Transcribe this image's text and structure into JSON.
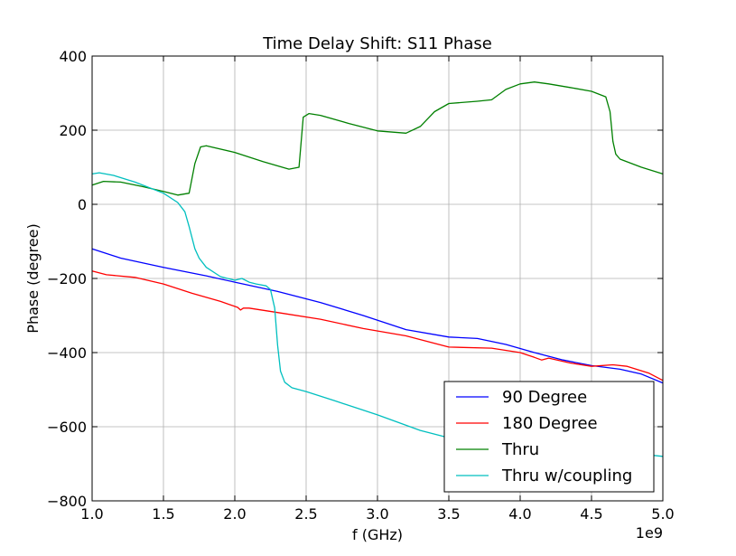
{
  "chart_data": {
    "type": "line",
    "title": "Time Delay Shift: S11 Phase",
    "xlabel": "f (GHz)",
    "ylabel": "Phase (degree)",
    "x_offset_label": "1e9",
    "xlim": [
      1.0,
      5.0
    ],
    "ylim": [
      -800,
      400
    ],
    "x_ticks": [
      1.0,
      1.5,
      2.0,
      2.5,
      3.0,
      3.5,
      4.0,
      4.5,
      5.0
    ],
    "x_tick_labels": [
      "1.0",
      "1.5",
      "2.0",
      "2.5",
      "3.0",
      "3.5",
      "4.0",
      "4.5",
      "5.0"
    ],
    "y_ticks": [
      -800,
      -600,
      -400,
      -200,
      0,
      200,
      400
    ],
    "y_tick_labels": [
      "−800",
      "−600",
      "−400",
      "−200",
      "0",
      "200",
      "400"
    ],
    "grid": true,
    "legend_position": "lower-right",
    "series": [
      {
        "name": "90 Degree",
        "color": "#0000ff",
        "x": [
          1.0,
          1.2,
          1.5,
          1.8,
          2.0,
          2.3,
          2.6,
          2.9,
          3.2,
          3.5,
          3.7,
          3.9,
          4.1,
          4.3,
          4.5,
          4.7,
          4.85,
          5.0
        ],
        "y": [
          -120,
          -145,
          -170,
          -193,
          -210,
          -235,
          -265,
          -300,
          -338,
          -358,
          -362,
          -378,
          -400,
          -420,
          -435,
          -445,
          -458,
          -482
        ]
      },
      {
        "name": "180 Degree",
        "color": "#ff0000",
        "x": [
          1.0,
          1.1,
          1.3,
          1.5,
          1.7,
          1.9,
          2.02,
          2.04,
          2.06,
          2.1,
          2.3,
          2.6,
          2.9,
          3.2,
          3.5,
          3.8,
          4.0,
          4.1,
          4.15,
          4.2,
          4.35,
          4.5,
          4.65,
          4.75,
          4.9,
          5.0
        ],
        "y": [
          -180,
          -190,
          -197,
          -215,
          -240,
          -262,
          -278,
          -285,
          -280,
          -280,
          -292,
          -310,
          -335,
          -355,
          -385,
          -388,
          -400,
          -413,
          -420,
          -415,
          -428,
          -437,
          -433,
          -437,
          -455,
          -475
        ]
      },
      {
        "name": "Thru",
        "color": "#008000",
        "x": [
          1.0,
          1.08,
          1.2,
          1.35,
          1.5,
          1.6,
          1.68,
          1.72,
          1.76,
          1.8,
          2.0,
          2.2,
          2.38,
          2.45,
          2.48,
          2.52,
          2.6,
          2.8,
          3.0,
          3.2,
          3.3,
          3.4,
          3.5,
          3.7,
          3.8,
          3.9,
          4.0,
          4.1,
          4.2,
          4.35,
          4.5,
          4.6,
          4.63,
          4.65,
          4.67,
          4.7,
          4.85,
          5.0
        ],
        "y": [
          52,
          62,
          60,
          48,
          35,
          25,
          30,
          110,
          155,
          158,
          140,
          115,
          95,
          100,
          235,
          245,
          240,
          218,
          198,
          192,
          210,
          250,
          272,
          278,
          282,
          310,
          325,
          330,
          325,
          315,
          305,
          290,
          250,
          170,
          135,
          122,
          100,
          82
        ]
      },
      {
        "name": "Thru w/coupling",
        "color": "#00bfbf",
        "x": [
          1.0,
          1.05,
          1.15,
          1.3,
          1.5,
          1.6,
          1.65,
          1.68,
          1.72,
          1.75,
          1.8,
          1.9,
          2.0,
          2.05,
          2.1,
          2.15,
          2.22,
          2.25,
          2.28,
          2.3,
          2.32,
          2.35,
          2.4,
          2.5,
          2.7,
          3.0,
          3.3,
          3.5,
          3.7,
          4.0,
          4.3,
          4.6,
          4.8,
          5.0
        ],
        "y": [
          82,
          85,
          78,
          60,
          30,
          5,
          -20,
          -60,
          -120,
          -145,
          -170,
          -195,
          -205,
          -200,
          -210,
          -215,
          -220,
          -230,
          -280,
          -380,
          -450,
          -480,
          -495,
          -505,
          -530,
          -568,
          -610,
          -630,
          -640,
          -650,
          -660,
          -668,
          -672,
          -680
        ]
      }
    ]
  }
}
